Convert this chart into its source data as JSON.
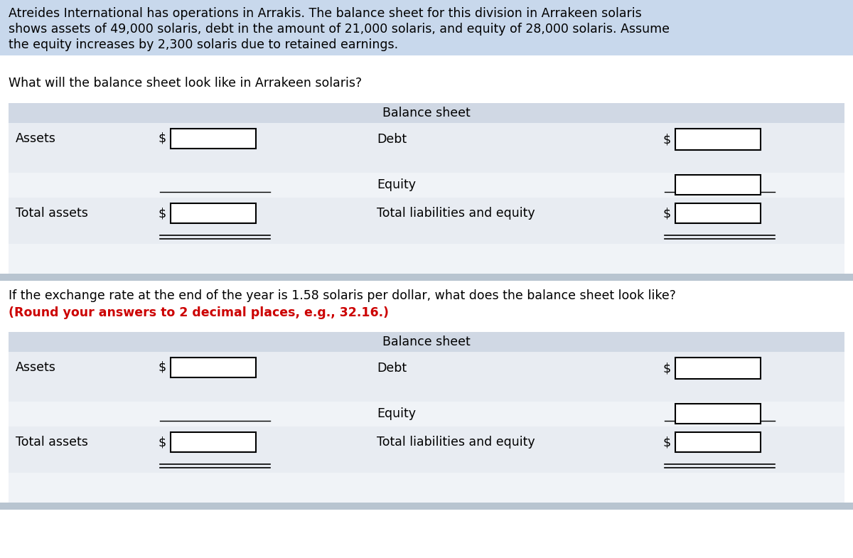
{
  "background_color": "#ffffff",
  "table_header_bg": "#d0d8e4",
  "table_body_bg_dark": "#e8ecf2",
  "table_body_bg_light": "#f0f3f7",
  "separator_color": "#b8c4d0",
  "highlight_color": "#c8d8ec",
  "red_text_color": "#cc0000",
  "problem_text_lines": [
    "Atreides International has operations in Arrakis. The balance sheet for this division in Arrakeen solaris",
    "shows assets of 49,000 solaris, debt in the amount of 21,000 solaris, and equity of 28,000 solaris. Assume",
    "the equity increases by 2,300 solaris due to retained earnings."
  ],
  "question1": "What will the balance sheet look like in Arrakeen solaris?",
  "question2_black": "If the exchange rate at the end of the year is 1.58 solaris per dollar, what does the balance sheet look like?",
  "question2_red": "(Round your answers to 2 decimal places, e.g., 32.16.)",
  "table_header": "Balance sheet",
  "label_assets": "Assets",
  "label_total_assets": "Total assets",
  "label_debt": "Debt",
  "label_equity": "Equity",
  "label_total_le": "Total liabilities and equity",
  "dollar_sign": "$",
  "font_size": 12.5
}
